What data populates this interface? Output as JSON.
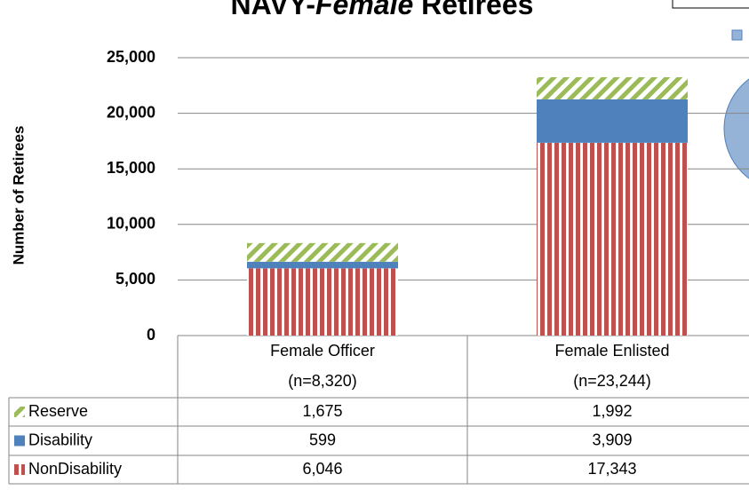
{
  "chart_data": {
    "type": "stacked_bar",
    "title_parts": [
      "NAVY-",
      "Female",
      " Retirees"
    ],
    "y_label": "Number of Retirees",
    "categories": [
      "Female Officer",
      "Female Enlisted"
    ],
    "category_notes": [
      "(n=8,320)",
      "(n=23,244)"
    ],
    "series": [
      {
        "name": "Reserve",
        "color": "#9bbb59",
        "pattern": "diagonal",
        "values": [
          1675,
          1992
        ],
        "value_labels": [
          "1,675",
          "1,992"
        ]
      },
      {
        "name": "Disability",
        "color": "#4f81bd",
        "pattern": "solid",
        "values": [
          599,
          3909
        ],
        "value_labels": [
          "599",
          "3,909"
        ]
      },
      {
        "name": "NonDisability",
        "color": "#c0504d",
        "pattern": "vertical",
        "values": [
          6046,
          17343
        ],
        "value_labels": [
          "6,046",
          "17,343"
        ]
      }
    ],
    "ylim": [
      0,
      25000
    ],
    "yticks": [
      0,
      {
        "value": 5000,
        "label": "5,000"
      },
      {
        "value": 10000,
        "label": "10,000"
      },
      {
        "value": 15000,
        "label": "15,000"
      },
      {
        "value": 20000,
        "label": "20,000"
      },
      {
        "value": 25000,
        "label": "25,000"
      }
    ],
    "grid": true
  }
}
